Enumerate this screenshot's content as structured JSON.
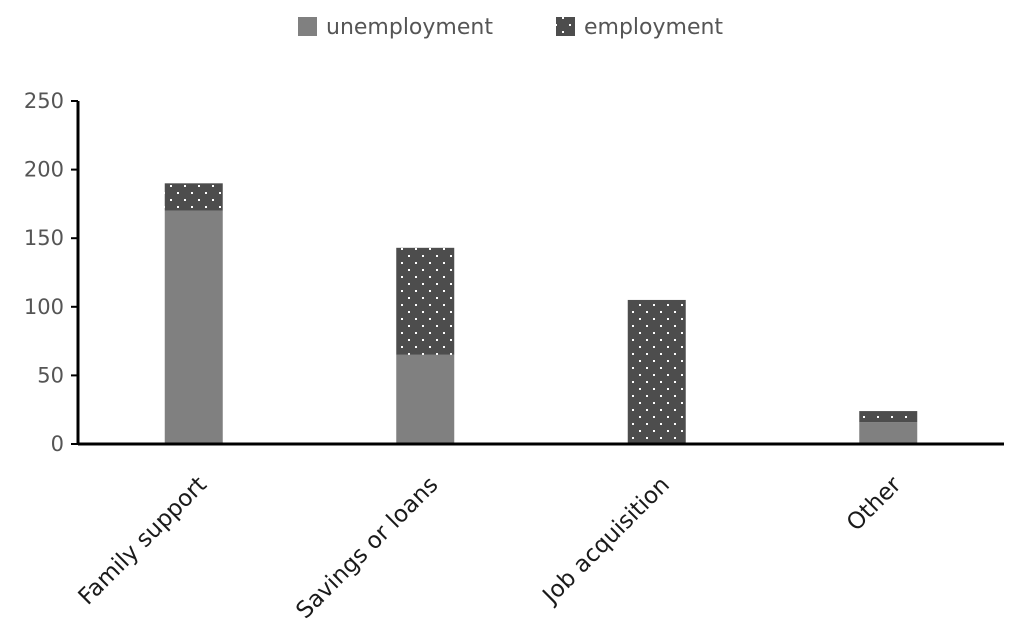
{
  "chart_data": {
    "type": "bar",
    "stacked": true,
    "categories": [
      "Family support",
      "Savings or loans",
      "Job acquisition",
      "Other"
    ],
    "series": [
      {
        "name": "unemployment",
        "values": [
          170,
          65,
          0,
          16
        ],
        "color": "#808080",
        "pattern": "solid"
      },
      {
        "name": "employment",
        "values": [
          20,
          78,
          105,
          8
        ],
        "color": "#4d4d4d",
        "pattern": "white-dots"
      }
    ],
    "title": "",
    "xlabel": "",
    "ylabel": "",
    "ylim": [
      0,
      250
    ],
    "yticks": [
      0,
      50,
      100,
      150,
      200,
      250
    ],
    "grid": false,
    "legend_position": "top-center"
  }
}
